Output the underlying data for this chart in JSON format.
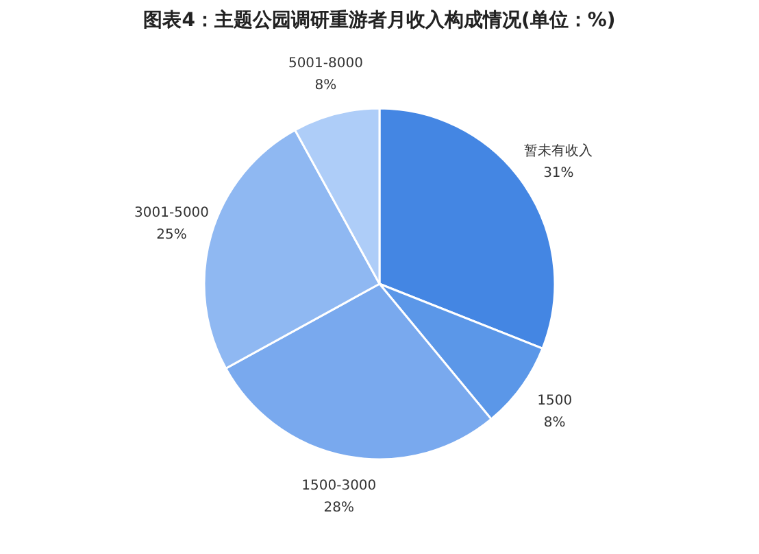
{
  "chart_data": {
    "type": "pie",
    "title": "图表4：主题公园调研重游者月收入构成情况(单位：%)",
    "categories": [
      "暂未有收入",
      "1500",
      "1500-3000",
      "3001-5000",
      "5001-8000"
    ],
    "values": [
      31,
      8,
      28,
      25,
      8
    ],
    "value_labels": [
      "31%",
      "8%",
      "28%",
      "25%",
      "8%"
    ],
    "colors": [
      "#4486e3",
      "#5b97e8",
      "#79a9ee",
      "#8fb8f2",
      "#aecdf8"
    ],
    "legend": false
  }
}
